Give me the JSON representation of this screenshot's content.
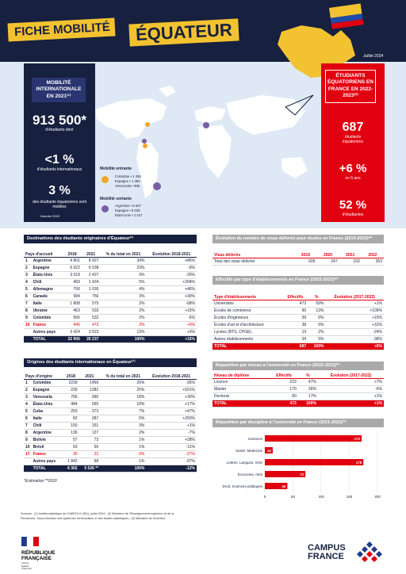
{
  "header": {
    "title1": "FICHE MOBILITÉ",
    "country": "ÉQUATEUR",
    "date": "Juillet 2024",
    "left_tag": "MOBILITÉ INTERNATIONALE EN 2021⁽¹⁾",
    "stat1_value": "913 500*",
    "stat1_label": "d'étudiants dont",
    "stat2_value": "<1 %",
    "stat2_label": "d'étudiants internationaux",
    "stat3_value": "3 %",
    "stat3_label": "des étudiants équatoriens sont mobiles",
    "stat3_note": "*donnée 2020",
    "mob_in_title": "Mobilité entrante",
    "mob_in": [
      "Colombie • 1 459",
      "Espagne • 1 382",
      "Venezuela • 995"
    ],
    "mob_out_title": "Mobilité sortante",
    "mob_out": [
      "Argentine • 8 927",
      "Espagne • 6 038",
      "États-Unis • 2 427"
    ],
    "right_tag": "ÉTUDIANTS ÉQUATORIENS EN FRANCE EN 2022-2023⁽²⁾",
    "r1_value": "687",
    "r1_label": "étudiants équatoriens",
    "r2_value": "+6 %",
    "r2_label": "en 5 ans",
    "r3_value": "52 %",
    "r3_label": "d'étudiantes",
    "colors": {
      "navy": "#17203f",
      "yellow": "#f2c230",
      "red": "#e1000f",
      "orange": "#f5a623",
      "purple": "#7b5ea7"
    }
  },
  "dest": {
    "title": "Destinations des étudiants originaires d'Équateur⁽¹⁾",
    "headers": [
      "Pays d'accueil",
      "2018",
      "2021",
      "% du total en 2021",
      "Évolution 2018-2021"
    ],
    "rows": [
      [
        "1",
        "Argentine",
        "4 801",
        "8 927",
        "34%",
        "+86%"
      ],
      [
        "2",
        "Espagne",
        "6 622",
        "6 038",
        "23%",
        "-9%"
      ],
      [
        "3",
        "États-Unis",
        "3 018",
        "2 427",
        "9%",
        "-20%"
      ],
      [
        "4",
        "Chili",
        "469",
        "1 424",
        "5%",
        "+204%"
      ],
      [
        "5",
        "Allemagne",
        "706",
        "1 030",
        "4%",
        "+46%"
      ],
      [
        "6",
        "Canada",
        "584",
        "756",
        "3%",
        "+30%"
      ],
      [
        "7",
        "Italie",
        "1 808",
        "575",
        "2%",
        "-68%"
      ],
      [
        "8",
        "Ukraine",
        "463",
        "533",
        "2%",
        "+15%"
      ],
      [
        "9",
        "Colombie",
        "566",
        "532",
        "2%",
        "-6%"
      ],
      [
        "10",
        "France",
        "445",
        "472",
        "2%",
        "+6%"
      ],
      [
        "",
        "Autres pays",
        "3 424",
        "3 523",
        "13%",
        "+3%"
      ],
      [
        "",
        "TOTAL",
        "22 906",
        "26 237",
        "100%",
        "+15%"
      ]
    ]
  },
  "orig": {
    "title": "Origines des étudiants internationaux en Équateur⁽¹⁾",
    "headers": [
      "Pays d'origine",
      "2018",
      "2021",
      "% du total en 2021",
      "Évolution 2018-2021"
    ],
    "rows": [
      [
        "1",
        "Colombie",
        "2239",
        "1459",
        "26%",
        "-35%"
      ],
      [
        "2",
        "Espagne",
        "230",
        "1382",
        "25%",
        "+501%"
      ],
      [
        "3",
        "Venezuela",
        "766",
        "995",
        "18%",
        "+30%"
      ],
      [
        "4",
        "États-Unis",
        "484",
        "565",
        "10%",
        "+17%"
      ],
      [
        "5",
        "Cuba",
        "253",
        "373",
        "7%",
        "+47%"
      ],
      [
        "6",
        "Italie",
        "82",
        "287",
        "5%",
        "+250%"
      ],
      [
        "7",
        "Chili",
        "150",
        "151",
        "3%",
        "+1%"
      ],
      [
        "8",
        "Argentine",
        "136",
        "127",
        "2%",
        "-7%"
      ],
      [
        "9",
        "Bolivie",
        "57",
        "73",
        "1%",
        "+28%"
      ],
      [
        "10",
        "Brésil",
        "63",
        "56",
        "1%",
        "-11%"
      ],
      [
        "17",
        "France",
        "30",
        "22",
        "0%",
        "-27%"
      ],
      [
        "",
        "Autres pays",
        "1 842",
        "58",
        "1%",
        "-97%"
      ],
      [
        "",
        "TOTAL",
        "6 302",
        "5 526 **",
        "100%",
        "-12%"
      ]
    ],
    "footnote": "*Estimation   **2020"
  },
  "visas": {
    "title": "Évolution du nombre de visas délivrés pour études en France (2019-2022)⁽²⁾",
    "headers": [
      "Visas délivrés",
      "2019",
      "2020",
      "2021",
      "2022"
    ],
    "rows": [
      [
        "Total des visas délivrés",
        "605",
        "247",
        "233",
        "353"
      ]
    ]
  },
  "etab": {
    "title": "Effectifs par type d'établissements en France (2022-2023)⁽²⁾",
    "headers": [
      "Type d'établissements",
      "Effectifs",
      "%",
      "Évolution (2017-2022)"
    ],
    "rows": [
      [
        "Universités",
        "473",
        "69%",
        "+1%"
      ],
      [
        "Écoles de commerce",
        "90",
        "13%",
        "+109%"
      ],
      [
        "Écoles d'ingénieurs",
        "39",
        "6%",
        "+15%"
      ],
      [
        "Écoles d'art et d'architecture",
        "38",
        "6%",
        "+31%"
      ],
      [
        "Lycées (BTS, CPGE)",
        "13",
        "2%",
        "-24%"
      ],
      [
        "Autres établissements",
        "34",
        "5%",
        "-38%"
      ],
      [
        "TOTAL",
        "687",
        "100%",
        "+6%"
      ]
    ]
  },
  "niveau": {
    "title": "Répartition par niveau à l'université en France (2022-2023)⁽²⁾",
    "headers": [
      "Niveau de diplôme",
      "Effectifs",
      "%",
      "Évolution (2017-2022)"
    ],
    "rows": [
      [
        "Licence",
        "223",
        "47%",
        "+7%"
      ],
      [
        "Master",
        "170",
        "36%",
        "-6%"
      ],
      [
        "Doctorat",
        "80",
        "17%",
        "+1%"
      ],
      [
        "TOTAL",
        "473",
        "100%",
        "+1%"
      ]
    ]
  },
  "chart_data": {
    "type": "bar",
    "title": "Répartition par discipline à l'université en France (2021-2022)⁽²⁾",
    "orientation": "horizontal",
    "categories": [
      "Sciences",
      "Santé, Médecine",
      "Lettres, Langues, SHS",
      "Économie, AES",
      "Droit, Sciences politiques"
    ],
    "values": [
      172,
      14,
      175,
      72,
      40
    ],
    "xlim": [
      0,
      200
    ],
    "ticks": [
      "0",
      "50",
      "100",
      "150",
      "200"
    ],
    "color": "#e1000f",
    "grid": true
  },
  "sources": "Sources : (1) Institut statistique de l'UNESCO (ISU), juillet 2024 ; (2) Ministère de l'Enseignement supérieur et de la Recherche, Sous-Direction des systèmes d'information et des études statistiques ; (3) Ministère de l'Intérieur.",
  "footer": {
    "rf_line1": "RÉPUBLIQUE",
    "rf_line2": "FRANÇAISE",
    "rf_motto1": "Liberté",
    "rf_motto2": "Égalité",
    "rf_motto3": "Fraternité",
    "cf_line1": "CAMPUS",
    "cf_line2": "FRANCE"
  }
}
